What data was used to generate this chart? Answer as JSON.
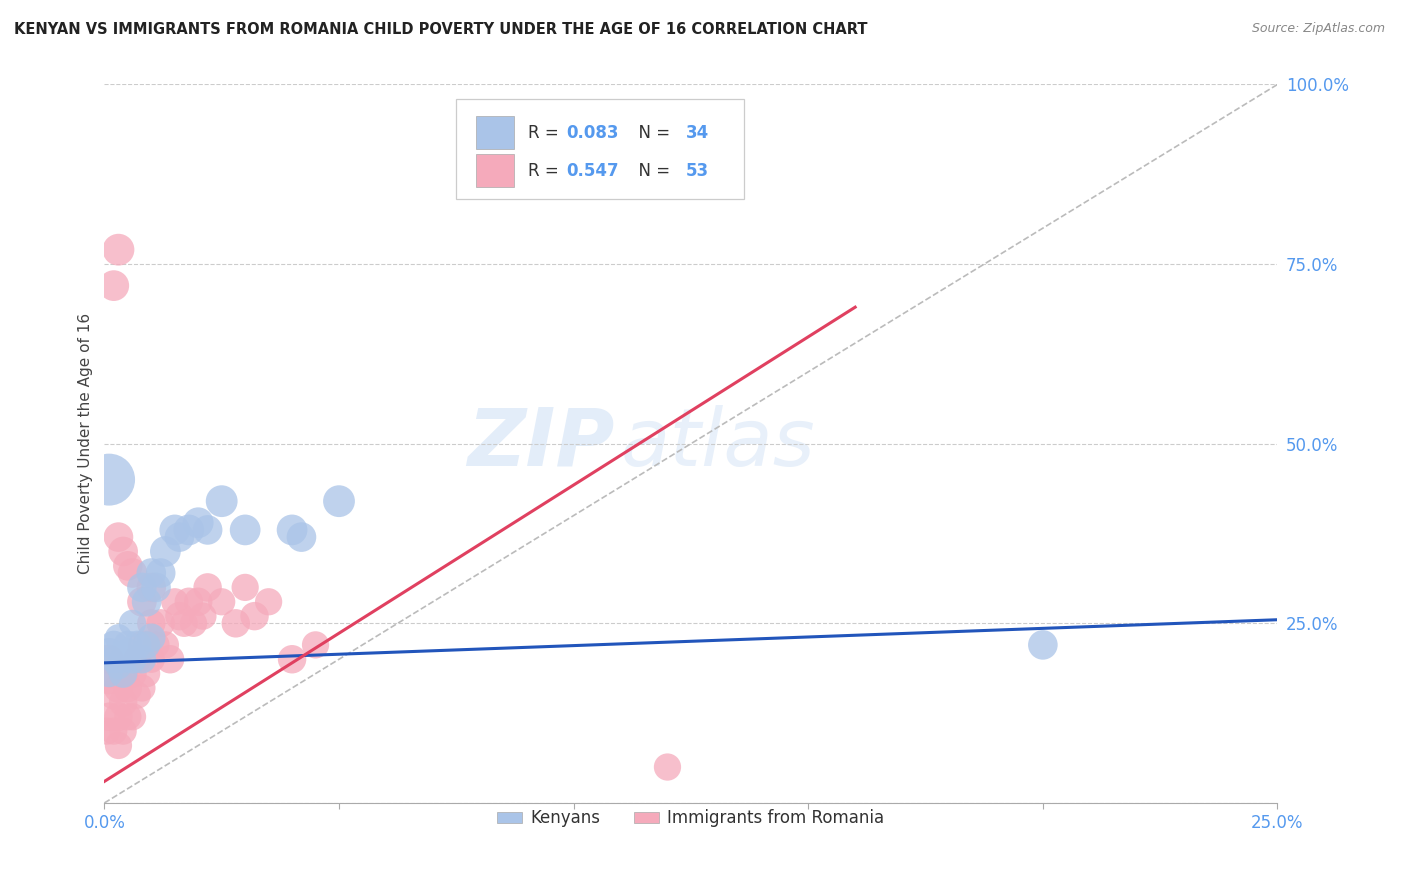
{
  "title": "KENYAN VS IMMIGRANTS FROM ROMANIA CHILD POVERTY UNDER THE AGE OF 16 CORRELATION CHART",
  "source": "Source: ZipAtlas.com",
  "ylabel": "Child Poverty Under the Age of 16",
  "xlim": [
    0.0,
    0.25
  ],
  "ylim": [
    0.0,
    1.0
  ],
  "watermark_zip": "ZIP",
  "watermark_atlas": "atlas",
  "legend_labels": [
    "Kenyans",
    "Immigrants from Romania"
  ],
  "blue_R": "R = 0.083",
  "blue_N": "N = 34",
  "pink_R": "R = 0.547",
  "pink_N": "N = 53",
  "blue_color": "#aac4e8",
  "pink_color": "#f5aabb",
  "blue_line_color": "#2255bb",
  "pink_line_color": "#e04060",
  "diag_line_color": "#bbbbbb",
  "grid_color": "#cccccc",
  "title_color": "#222222",
  "axis_label_color": "#444444",
  "tick_color": "#5599ee",
  "blue_line_x": [
    0.0,
    0.25
  ],
  "blue_line_y": [
    0.195,
    0.255
  ],
  "pink_line_x": [
    0.0,
    0.16
  ],
  "pink_line_y": [
    0.03,
    0.69
  ],
  "blue_scatter_x": [
    0.001,
    0.001,
    0.002,
    0.002,
    0.003,
    0.003,
    0.004,
    0.004,
    0.005,
    0.005,
    0.006,
    0.006,
    0.007,
    0.008,
    0.008,
    0.009,
    0.009,
    0.01,
    0.01,
    0.011,
    0.012,
    0.013,
    0.015,
    0.016,
    0.018,
    0.02,
    0.022,
    0.025,
    0.03,
    0.04,
    0.042,
    0.05,
    0.2,
    0.001
  ],
  "blue_scatter_y": [
    0.18,
    0.21,
    0.2,
    0.22,
    0.19,
    0.23,
    0.2,
    0.18,
    0.21,
    0.22,
    0.2,
    0.25,
    0.22,
    0.2,
    0.3,
    0.22,
    0.28,
    0.23,
    0.32,
    0.3,
    0.32,
    0.35,
    0.38,
    0.37,
    0.38,
    0.39,
    0.38,
    0.42,
    0.38,
    0.38,
    0.37,
    0.42,
    0.22,
    0.45
  ],
  "blue_scatter_size": [
    55,
    60,
    55,
    60,
    50,
    55,
    55,
    60,
    55,
    60,
    60,
    55,
    60,
    60,
    65,
    55,
    65,
    60,
    65,
    65,
    65,
    70,
    70,
    65,
    70,
    70,
    65,
    75,
    70,
    70,
    65,
    75,
    65,
    200
  ],
  "pink_scatter_x": [
    0.0005,
    0.001,
    0.001,
    0.001,
    0.002,
    0.002,
    0.002,
    0.003,
    0.003,
    0.003,
    0.004,
    0.004,
    0.004,
    0.005,
    0.005,
    0.006,
    0.006,
    0.007,
    0.007,
    0.008,
    0.008,
    0.009,
    0.009,
    0.01,
    0.01,
    0.011,
    0.012,
    0.013,
    0.014,
    0.015,
    0.016,
    0.017,
    0.018,
    0.019,
    0.02,
    0.021,
    0.022,
    0.025,
    0.028,
    0.03,
    0.032,
    0.035,
    0.04,
    0.045,
    0.003,
    0.004,
    0.005,
    0.006,
    0.008,
    0.01,
    0.002,
    0.003,
    0.12
  ],
  "pink_scatter_y": [
    0.1,
    0.12,
    0.17,
    0.2,
    0.1,
    0.15,
    0.18,
    0.08,
    0.12,
    0.16,
    0.1,
    0.14,
    0.18,
    0.12,
    0.16,
    0.12,
    0.18,
    0.15,
    0.2,
    0.16,
    0.22,
    0.18,
    0.22,
    0.2,
    0.25,
    0.22,
    0.25,
    0.22,
    0.2,
    0.28,
    0.26,
    0.25,
    0.28,
    0.25,
    0.28,
    0.26,
    0.3,
    0.28,
    0.25,
    0.3,
    0.26,
    0.28,
    0.2,
    0.22,
    0.37,
    0.35,
    0.33,
    0.32,
    0.28,
    0.3,
    0.72,
    0.77,
    0.05
  ],
  "pink_scatter_size": [
    55,
    60,
    55,
    65,
    55,
    60,
    65,
    55,
    60,
    65,
    55,
    60,
    65,
    55,
    60,
    55,
    60,
    55,
    60,
    55,
    60,
    55,
    60,
    55,
    60,
    55,
    60,
    55,
    60,
    55,
    60,
    55,
    60,
    55,
    60,
    55,
    60,
    55,
    60,
    55,
    60,
    55,
    60,
    55,
    65,
    65,
    65,
    65,
    65,
    65,
    70,
    75,
    55
  ]
}
